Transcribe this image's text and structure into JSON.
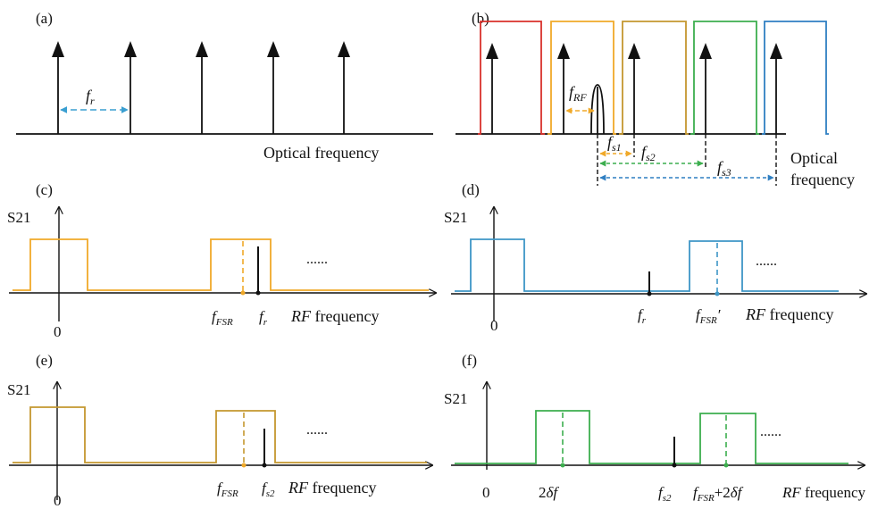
{
  "colors": {
    "axis": "#111111",
    "red": "#d9312b",
    "orange": "#f0a929",
    "gold": "#c4972f",
    "green": "#3cae4e",
    "blue": "#3e96c6",
    "fr_arrow": "#3a9fd1"
  },
  "panel_a": {
    "label": "(a)",
    "axis_label": "Optical frequency",
    "spacing_symbol": "f",
    "spacing_sub": "r"
  },
  "panel_b": {
    "label": "(b)",
    "rf_symbol": "f",
    "rf_sub": "RF",
    "s1_symbol": "f",
    "s1_sub": "s1",
    "s2_symbol": "f",
    "s2_sub": "s2",
    "s3_symbol": "f",
    "s3_sub": "s3",
    "axis_label_line1": "Optical",
    "axis_label_line2": "frequency"
  },
  "panel_c": {
    "label": "(c)",
    "ylabel": "S21",
    "origin": "0",
    "marker1_symbol": "f",
    "marker1_sub": "FSR",
    "marker2_symbol": "f",
    "marker2_sub": "r",
    "ellipsis": "......",
    "xlabel_italic": "RF",
    "xlabel_rest": " frequency"
  },
  "panel_d": {
    "label": "(d)",
    "ylabel": "S21",
    "origin": "0",
    "marker1_symbol": "f",
    "marker1_sub": "r",
    "marker2_symbol": "f",
    "marker2_sub": "FSR",
    "marker2_prime": "′",
    "ellipsis": "......",
    "xlabel_italic": "RF",
    "xlabel_rest": " frequency"
  },
  "panel_e": {
    "label": "(e)",
    "ylabel": "S21",
    "origin": "0",
    "marker1_symbol": "f",
    "marker1_sub": "FSR",
    "marker2_symbol": "f",
    "marker2_sub": "s2",
    "ellipsis": "......",
    "xlabel_italic": "RF",
    "xlabel_rest": " frequency"
  },
  "panel_f": {
    "label": "(f)",
    "ylabel": "S21",
    "origin": "0",
    "marker1_prefix": "2",
    "marker1_italic": "δf",
    "marker2_symbol": "f",
    "marker2_sub": "s2",
    "marker3_symbol": "f",
    "marker3_sub": "FSR",
    "marker3_plus": "+2",
    "marker3_italic": "δf",
    "ellipsis": "......",
    "xlabel_italic": "RF",
    "xlabel_rest": " frequency"
  }
}
